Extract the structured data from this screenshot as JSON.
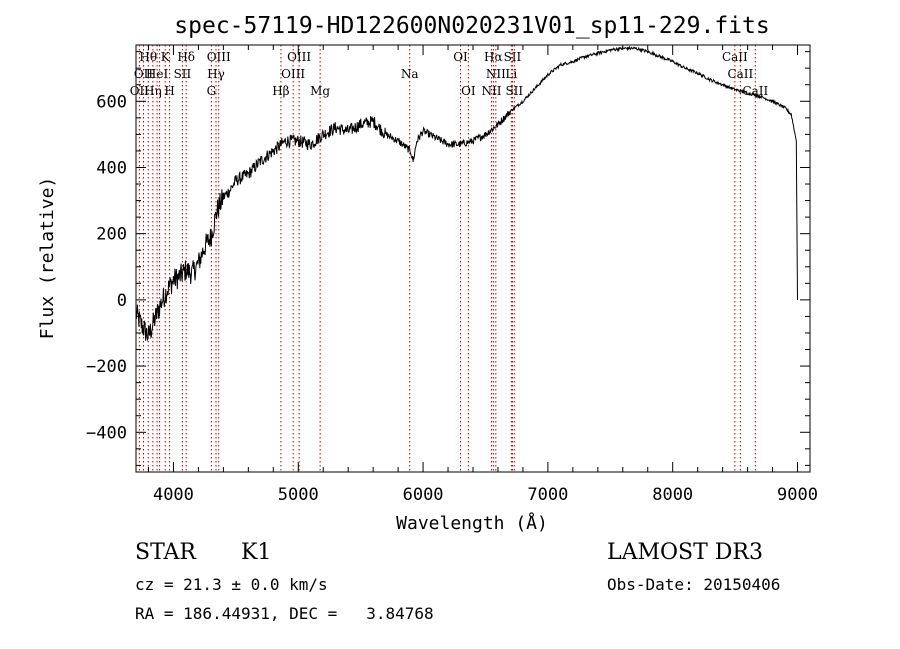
{
  "chart_data": {
    "type": "line",
    "title": "spec-57119-HD122600N020231V01_sp11-229.fits",
    "xlabel": "Wavelength (Å)",
    "ylabel": "Flux (relative)",
    "xlim": [
      3700,
      9100
    ],
    "ylim": [
      -520,
      770
    ],
    "x_ticks": [
      4000,
      5000,
      6000,
      7000,
      8000,
      9000
    ],
    "y_ticks": [
      -400,
      -200,
      0,
      200,
      400,
      600
    ],
    "grid": false,
    "line_color": "#000000",
    "marker_color": "#c00000",
    "series": [
      {
        "x": [
          3700,
          3750,
          3800,
          3850,
          3900,
          3950,
          4000,
          4050,
          4100,
          4150,
          4200,
          4250,
          4300,
          4350,
          4400,
          4450,
          4500,
          4600,
          4700,
          4800,
          4900,
          5000,
          5100,
          5200,
          5300,
          5400,
          5500,
          5600,
          5700,
          5800,
          5900,
          5920,
          5950,
          6000,
          6100,
          6200,
          6300,
          6400,
          6500,
          6600,
          6700,
          6800,
          6900,
          7000,
          7100,
          7200,
          7300,
          7400,
          7500,
          7600,
          7700,
          7800,
          7900,
          8000,
          8100,
          8200,
          8300,
          8400,
          8500,
          8600,
          8700,
          8800,
          8900,
          8950,
          8990,
          9000
        ],
        "y": [
          -40,
          -80,
          -110,
          -60,
          -10,
          30,
          60,
          70,
          90,
          80,
          110,
          160,
          190,
          270,
          310,
          330,
          360,
          380,
          420,
          450,
          480,
          480,
          470,
          500,
          520,
          510,
          530,
          540,
          500,
          480,
          450,
          420,
          480,
          510,
          490,
          470,
          470,
          480,
          500,
          530,
          570,
          600,
          640,
          680,
          710,
          720,
          735,
          745,
          755,
          760,
          760,
          750,
          735,
          720,
          700,
          685,
          665,
          650,
          635,
          625,
          615,
          600,
          580,
          560,
          480,
          0
        ]
      }
    ],
    "line_markers": [
      {
        "wl": 3727,
        "row": 2,
        "label": "OII"
      },
      {
        "wl": 3760,
        "row": 1,
        "label": "OII"
      },
      {
        "wl": 3798,
        "row": 0,
        "label": "Hθ"
      },
      {
        "wl": 3835,
        "row": 2,
        "label": "Hη"
      },
      {
        "wl": 3869,
        "row": 1,
        "label": "HeI"
      },
      {
        "wl": 3889,
        "row": 1,
        "label": ""
      },
      {
        "wl": 3934,
        "row": 0,
        "label": "K"
      },
      {
        "wl": 3969,
        "row": 2,
        "label": "H"
      },
      {
        "wl": 4072,
        "row": 1,
        "label": "SII"
      },
      {
        "wl": 4102,
        "row": 0,
        "label": "Hδ"
      },
      {
        "wl": 4304,
        "row": 2,
        "label": "G"
      },
      {
        "wl": 4341,
        "row": 1,
        "label": "Hγ"
      },
      {
        "wl": 4363,
        "row": 0,
        "label": "OIII"
      },
      {
        "wl": 4861,
        "row": 2,
        "label": "Hβ"
      },
      {
        "wl": 4959,
        "row": 1,
        "label": "OIII"
      },
      {
        "wl": 5007,
        "row": 0,
        "label": "OIII"
      },
      {
        "wl": 5175,
        "row": 2,
        "label": "Mg"
      },
      {
        "wl": 5893,
        "row": 1,
        "label": "Na"
      },
      {
        "wl": 6300,
        "row": 0,
        "label": "OI"
      },
      {
        "wl": 6363,
        "row": 2,
        "label": "OI"
      },
      {
        "wl": 6548,
        "row": 2,
        "label": "NII"
      },
      {
        "wl": 6563,
        "row": 0,
        "label": "Hα"
      },
      {
        "wl": 6583,
        "row": 1,
        "label": "NII"
      },
      {
        "wl": 6707,
        "row": 1,
        "label": "Li"
      },
      {
        "wl": 6716,
        "row": 0,
        "label": "SII"
      },
      {
        "wl": 6731,
        "row": 2,
        "label": "SII"
      },
      {
        "wl": 8498,
        "row": 0,
        "label": "CaII"
      },
      {
        "wl": 8542,
        "row": 1,
        "label": "CaII"
      },
      {
        "wl": 8662,
        "row": 2,
        "label": "CaII"
      }
    ]
  },
  "info": {
    "object_class": "STAR",
    "subclass": "K1",
    "survey": "LAMOST DR3",
    "cz_line": "cz = 21.3 ± 0.0 km/s",
    "obs_date_line": "Obs-Date: 20150406",
    "radec_line": "RA = 186.44931, DEC =   3.84768"
  }
}
